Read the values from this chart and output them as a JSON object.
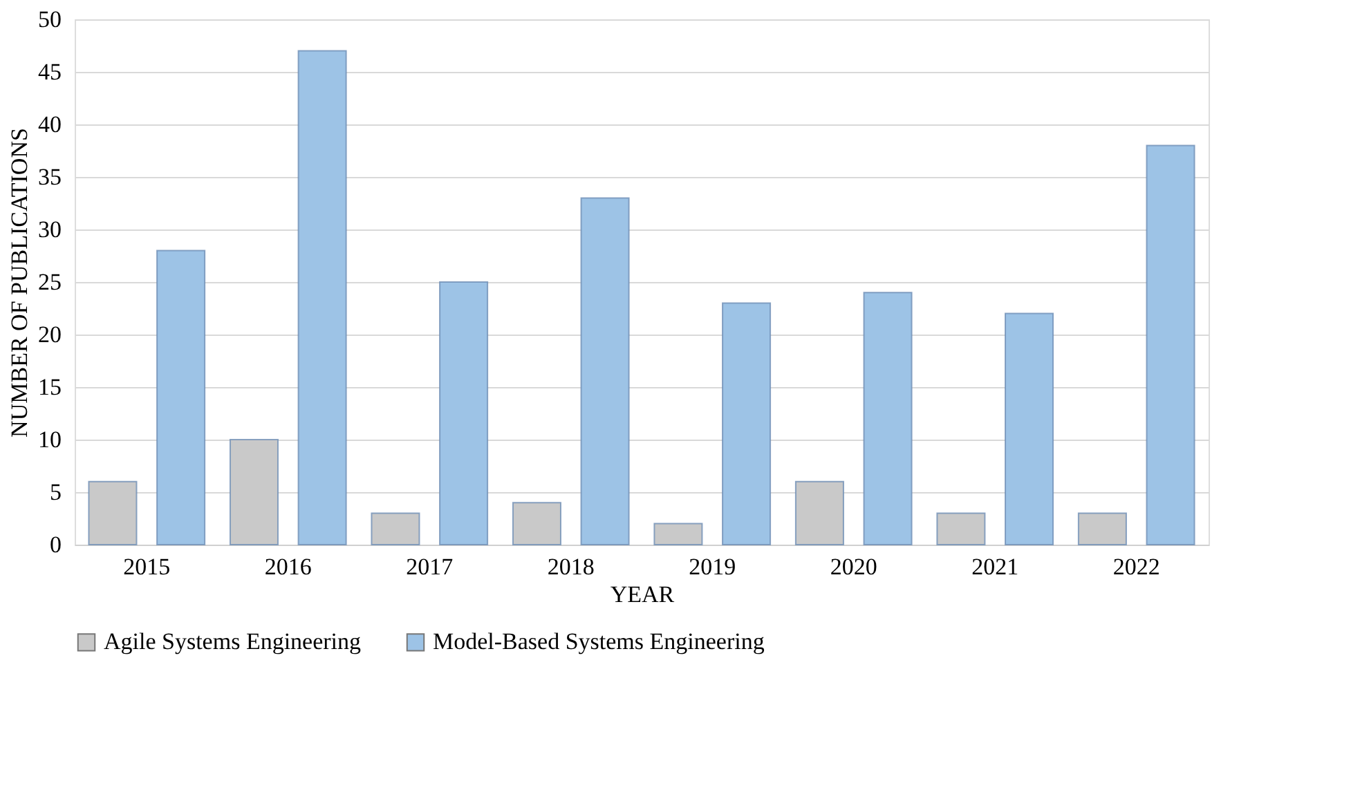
{
  "chart_data": {
    "type": "bar",
    "xlabel": "YEAR",
    "ylabel": "NUMBER OF PUBLICATIONS",
    "categories": [
      "2015",
      "2016",
      "2017",
      "2018",
      "2019",
      "2020",
      "2021",
      "2022"
    ],
    "series": [
      {
        "name": "Agile Systems Engineering",
        "color": "#c9c9c9",
        "values": [
          6,
          10,
          3,
          4,
          2,
          6,
          3,
          3
        ]
      },
      {
        "name": "Model-Based Systems Engineering",
        "color": "#9dc3e6",
        "values": [
          28,
          47,
          25,
          33,
          23,
          24,
          22,
          38
        ]
      }
    ],
    "ylim": [
      0,
      50
    ],
    "yticks": [
      0,
      5,
      10,
      15,
      20,
      25,
      30,
      35,
      40,
      45,
      50
    ],
    "grid": "y",
    "legend": "bottom"
  }
}
